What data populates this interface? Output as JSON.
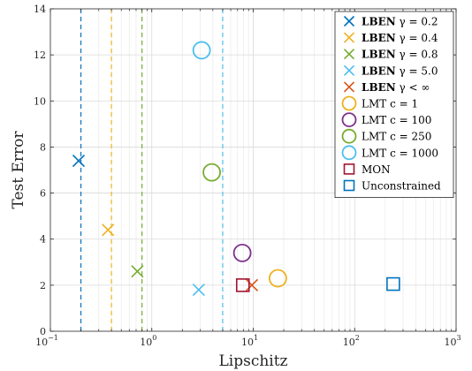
{
  "chart_data": {
    "type": "scatter",
    "xlabel": "Lipschitz",
    "ylabel": "Test Error",
    "xscale": "log",
    "xlim": [
      0.1,
      1000
    ],
    "ylim": [
      0,
      14
    ],
    "grid": true,
    "x_ticks": [
      {
        "value": 0.1,
        "base": "10",
        "exp": "−1"
      },
      {
        "value": 1,
        "base": "10",
        "exp": "0"
      },
      {
        "value": 10,
        "base": "10",
        "exp": "1"
      },
      {
        "value": 100,
        "base": "10",
        "exp": "2"
      },
      {
        "value": 1000,
        "base": "10",
        "exp": "3"
      }
    ],
    "y_ticks": [
      0,
      2,
      4,
      6,
      8,
      10,
      12,
      14
    ],
    "legend_position": "top-right",
    "vlines": [
      {
        "x": 0.2,
        "color": "#0072BD"
      },
      {
        "x": 0.4,
        "color": "#EDB120"
      },
      {
        "x": 0.8,
        "color": "#77AC30"
      },
      {
        "x": 5.0,
        "color": "#4DBEEE"
      }
    ],
    "series": [
      {
        "legend": [
          "LBEN",
          " γ = 0.2"
        ],
        "marker": "x",
        "color": "#0072BD",
        "points": [
          {
            "x": 0.19,
            "y": 7.4
          }
        ]
      },
      {
        "legend": [
          "LBEN",
          " γ = 0.4"
        ],
        "marker": "x",
        "color": "#EDB120",
        "points": [
          {
            "x": 0.37,
            "y": 4.4
          }
        ]
      },
      {
        "legend": [
          "LBEN",
          " γ = 0.8"
        ],
        "marker": "x",
        "color": "#77AC30",
        "points": [
          {
            "x": 0.72,
            "y": 2.6
          }
        ]
      },
      {
        "legend": [
          "LBEN",
          " γ = 5.0"
        ],
        "marker": "x",
        "color": "#4DBEEE",
        "points": [
          {
            "x": 2.9,
            "y": 1.8
          }
        ]
      },
      {
        "legend": [
          "LBEN",
          " γ < ∞"
        ],
        "marker": "x",
        "color": "#D95319",
        "points": [
          {
            "x": 9.7,
            "y": 2.0
          }
        ]
      },
      {
        "legend": [
          "",
          "LMT c = 1"
        ],
        "marker": "circle",
        "color": "#EDB120",
        "points": [
          {
            "x": 17.5,
            "y": 2.3
          }
        ]
      },
      {
        "legend": [
          "",
          "LMT c = 100"
        ],
        "marker": "circle",
        "color": "#7E2F8E",
        "points": [
          {
            "x": 7.8,
            "y": 3.4
          }
        ]
      },
      {
        "legend": [
          "",
          "LMT c = 250"
        ],
        "marker": "circle",
        "color": "#77AC30",
        "points": [
          {
            "x": 3.9,
            "y": 6.9
          }
        ]
      },
      {
        "legend": [
          "",
          "LMT c = 1000"
        ],
        "marker": "circle",
        "color": "#4DBEEE",
        "points": [
          {
            "x": 3.1,
            "y": 12.2
          }
        ]
      },
      {
        "legend": [
          "",
          "MON"
        ],
        "marker": "square",
        "color": "#A2142F",
        "points": [
          {
            "x": 7.9,
            "y": 2.0
          }
        ]
      },
      {
        "legend": [
          "",
          "Unconstrained"
        ],
        "marker": "square",
        "color": "#0072BD",
        "points": [
          {
            "x": 240,
            "y": 2.05
          }
        ]
      }
    ]
  }
}
